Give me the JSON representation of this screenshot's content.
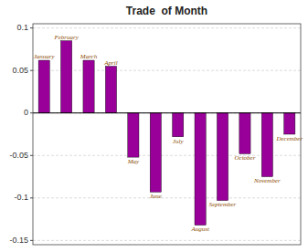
{
  "chart_data": {
    "type": "bar",
    "title": "Trade  of Month",
    "categories": [
      "January",
      "February",
      "March",
      "April",
      "May",
      "June",
      "July",
      "August",
      "September",
      "October",
      "November",
      "December"
    ],
    "values": [
      0.062,
      0.085,
      0.062,
      0.055,
      -0.052,
      -0.093,
      -0.028,
      -0.132,
      -0.103,
      -0.048,
      -0.075,
      -0.025
    ],
    "color": "#990099",
    "ylim": [
      -0.155,
      0.105
    ],
    "yticks": [
      -0.15,
      -0.1,
      -0.05,
      0,
      0.05,
      0.1
    ],
    "grid": true,
    "tick_labels": "y"
  }
}
